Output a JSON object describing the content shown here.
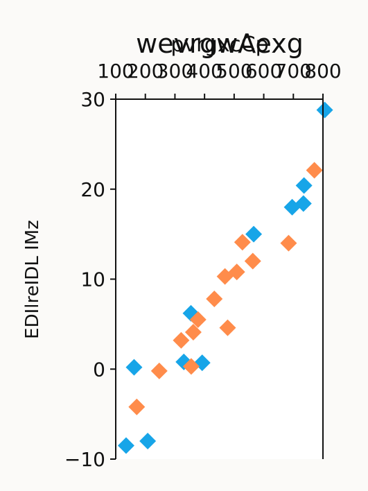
{
  "chart_data": {
    "type": "scatter",
    "title": "wevrgwAexg",
    "xlabel": "pvrgxcCp",
    "ylabel": "EDIlreIDL IMz",
    "xlim": [
      100,
      800
    ],
    "ylim": [
      -10,
      30
    ],
    "xticks": [
      100,
      200,
      300,
      400,
      500,
      600,
      700,
      800
    ],
    "xtick_labels": [
      "100",
      "200",
      "300",
      "400",
      "500",
      "600",
      "700",
      "800"
    ],
    "yticks": [
      -10,
      0,
      10,
      20,
      30
    ],
    "ytick_labels": [
      "−10",
      "0",
      "10",
      "20",
      "30"
    ],
    "x_axis_position": "top",
    "grid": false,
    "series": [
      {
        "color": "#17a5e8",
        "marker": "diamond",
        "points": [
          [
            135,
            -8.5
          ],
          [
            162,
            0.2
          ],
          [
            208,
            -8.0
          ],
          [
            330,
            0.8
          ],
          [
            354,
            6.2
          ],
          [
            392,
            0.7
          ],
          [
            566,
            15.0
          ],
          [
            696,
            18.0
          ],
          [
            734,
            18.4
          ],
          [
            736,
            20.4
          ],
          [
            806,
            28.8
          ]
        ]
      },
      {
        "color": "#ff8c4b",
        "marker": "diamond",
        "points": [
          [
            171,
            -4.2
          ],
          [
            247,
            -0.2
          ],
          [
            321,
            3.2
          ],
          [
            355,
            0.3
          ],
          [
            362,
            4.1
          ],
          [
            378,
            5.5
          ],
          [
            433,
            7.8
          ],
          [
            469,
            10.3
          ],
          [
            478,
            4.6
          ],
          [
            509,
            10.8
          ],
          [
            528,
            14.1
          ],
          [
            563,
            12.0
          ],
          [
            684,
            14.0
          ],
          [
            771,
            22.1
          ]
        ]
      }
    ]
  }
}
